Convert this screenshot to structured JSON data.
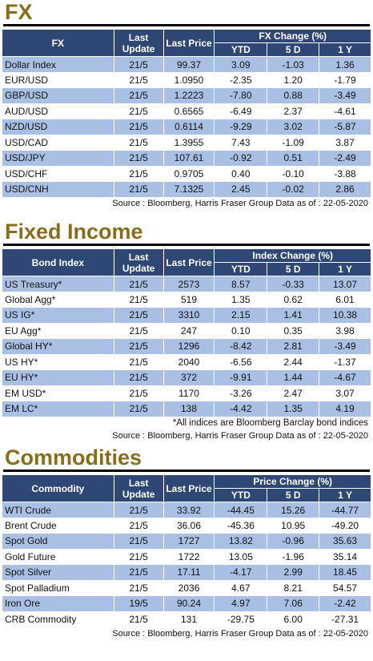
{
  "fx": {
    "title": "FX",
    "headers": {
      "name": "FX",
      "last_update": "Last Update",
      "last_price": "Last Price",
      "change_group": "FX Change (%)",
      "ytd": "YTD",
      "d5": "5 D",
      "y1": "1 Y"
    },
    "rows": [
      {
        "name": "Dollar Index",
        "update": "21/5",
        "price": "99.37",
        "ytd": "3.09",
        "d5": "-1.03",
        "y1": "1.36"
      },
      {
        "name": "EUR/USD",
        "update": "21/5",
        "price": "1.0950",
        "ytd": "-2.35",
        "d5": "1.20",
        "y1": "-1.79"
      },
      {
        "name": "GBP/USD",
        "update": "21/5",
        "price": "1.2223",
        "ytd": "-7.80",
        "d5": "0.88",
        "y1": "-3.49"
      },
      {
        "name": "AUD/USD",
        "update": "21/5",
        "price": "0.6565",
        "ytd": "-6.49",
        "d5": "2.37",
        "y1": "-4.61"
      },
      {
        "name": "NZD/USD",
        "update": "21/5",
        "price": "0.6114",
        "ytd": "-9.29",
        "d5": "3.02",
        "y1": "-5.87"
      },
      {
        "name": "USD/CAD",
        "update": "21/5",
        "price": "1.3955",
        "ytd": "7.43",
        "d5": "-1.09",
        "y1": "3.87"
      },
      {
        "name": "USD/JPY",
        "update": "21/5",
        "price": "107.61",
        "ytd": "-0.92",
        "d5": "0.51",
        "y1": "-2.49"
      },
      {
        "name": "USD/CHF",
        "update": "21/5",
        "price": "0.9705",
        "ytd": "0.40",
        "d5": "-0.10",
        "y1": "-3.88"
      },
      {
        "name": "USD/CNH",
        "update": "21/5",
        "price": "7.1325",
        "ytd": "2.45",
        "d5": "-0.02",
        "y1": "2.86"
      }
    ],
    "source": "Source : Bloomberg, Harris Fraser Group Data as of : 22-05-2020"
  },
  "fixed_income": {
    "title": "Fixed Income",
    "headers": {
      "name": "Bond Index",
      "last_update": "Last Update",
      "last_price": "Last Price",
      "change_group": "Index Change (%)",
      "ytd": "YTD",
      "d5": "5 D",
      "y1": "1 Y"
    },
    "rows": [
      {
        "name": "US Treasury*",
        "update": "21/5",
        "price": "2573",
        "ytd": "8.57",
        "d5": "-0.33",
        "y1": "13.07"
      },
      {
        "name": "Global Agg*",
        "update": "21/5",
        "price": "519",
        "ytd": "1.35",
        "d5": "0.62",
        "y1": "6.01"
      },
      {
        "name": "US IG*",
        "update": "21/5",
        "price": "3310",
        "ytd": "2.15",
        "d5": "1.41",
        "y1": "10.38"
      },
      {
        "name": "EU Agg*",
        "update": "21/5",
        "price": "247",
        "ytd": "0.10",
        "d5": "0.35",
        "y1": "3.98"
      },
      {
        "name": "Global HY*",
        "update": "21/5",
        "price": "1296",
        "ytd": "-8.42",
        "d5": "2.81",
        "y1": "-3.49"
      },
      {
        "name": "US HY*",
        "update": "21/5",
        "price": "2040",
        "ytd": "-6.56",
        "d5": "2.44",
        "y1": "-1.37"
      },
      {
        "name": "EU HY*",
        "update": "21/5",
        "price": "372",
        "ytd": "-9.91",
        "d5": "1.44",
        "y1": "-4.67"
      },
      {
        "name": "EM USD*",
        "update": "21/5",
        "price": "1170",
        "ytd": "-3.26",
        "d5": "2.47",
        "y1": "3.07"
      },
      {
        "name": "EM LC*",
        "update": "21/5",
        "price": "138",
        "ytd": "-4.42",
        "d5": "1.35",
        "y1": "4.19"
      }
    ],
    "note": "*All indices are Bloomberg Barclay bond indices",
    "source": "Source : Bloomberg, Harris Fraser Group Data as of : 22-05-2020"
  },
  "commodities": {
    "title": "Commodities",
    "headers": {
      "name": "Commodity",
      "last_update": "Last Update",
      "last_price": "Last Price",
      "change_group": "Price Change (%)",
      "ytd": "YTD",
      "d5": "5 D",
      "y1": "1 Y"
    },
    "rows": [
      {
        "name": "WTI Crude",
        "update": "21/5",
        "price": "33.92",
        "ytd": "-44.45",
        "d5": "15.26",
        "y1": "-44.77"
      },
      {
        "name": "Brent Crude",
        "update": "21/5",
        "price": "36.06",
        "ytd": "-45.36",
        "d5": "10.95",
        "y1": "-49.20"
      },
      {
        "name": "Spot Gold",
        "update": "21/5",
        "price": "1727",
        "ytd": "13.82",
        "d5": "-0.96",
        "y1": "35.63"
      },
      {
        "name": "Gold Future",
        "update": "21/5",
        "price": "1722",
        "ytd": "13.05",
        "d5": "-1.96",
        "y1": "35.14"
      },
      {
        "name": "Spot Silver",
        "update": "21/5",
        "price": "17.11",
        "ytd": "-4.17",
        "d5": "2.99",
        "y1": "18.45"
      },
      {
        "name": "Spot Palladium",
        "update": "21/5",
        "price": "2036",
        "ytd": "4.67",
        "d5": "8.21",
        "y1": "54.57"
      },
      {
        "name": "Iron Ore",
        "update": "19/5",
        "price": "90.24",
        "ytd": "4.97",
        "d5": "7.06",
        "y1": "-2.42"
      },
      {
        "name": "CRB Commodity",
        "update": "21/5",
        "price": "131",
        "ytd": "-29.75",
        "d5": "6.00",
        "y1": "-27.31"
      }
    ],
    "source": "Source : Bloomberg, Harris Fraser Group Data as of : 22-05-2020"
  }
}
